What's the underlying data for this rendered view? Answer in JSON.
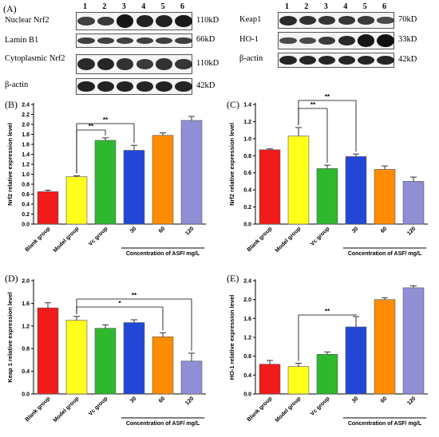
{
  "blots": {
    "panel_label": "(A)",
    "lanes": [
      "1",
      "2",
      "3",
      "4",
      "5",
      "6"
    ],
    "left": [
      {
        "label": "Nuclear Nrf2",
        "kd": "110kD",
        "intensity": [
          0.55,
          0.6,
          0.95,
          0.85,
          0.85,
          0.9
        ]
      },
      {
        "label": "Lamin B1",
        "kd": "66kD",
        "intensity": [
          0.55,
          0.55,
          0.55,
          0.55,
          0.55,
          0.55
        ]
      },
      {
        "label": "Cytoplasmic Nrf2",
        "kd": "110kD",
        "intensity": [
          0.75,
          0.8,
          0.7,
          0.6,
          0.7,
          0.65
        ]
      },
      {
        "label": "β-actin",
        "kd": "42kD",
        "intensity": [
          0.85,
          0.85,
          0.8,
          0.8,
          0.85,
          0.8
        ]
      }
    ],
    "right": [
      {
        "label": "Keap1",
        "kd": "70kD",
        "intensity": [
          0.75,
          0.7,
          0.65,
          0.65,
          0.6,
          0.45
        ]
      },
      {
        "label": "HO-1",
        "kd": "33kD",
        "intensity": [
          0.45,
          0.45,
          0.6,
          0.75,
          0.95,
          1.0
        ]
      },
      {
        "label": "β-actin",
        "kd": "42kD",
        "intensity": [
          0.8,
          0.8,
          0.8,
          0.8,
          0.8,
          0.8
        ]
      }
    ]
  },
  "chart_data": [
    {
      "panel": "(B)",
      "type": "bar",
      "categories": [
        "Blank group",
        "Model group",
        "Vc group",
        "30",
        "60",
        "120"
      ],
      "values": [
        0.65,
        0.95,
        1.68,
        1.48,
        1.78,
        2.08
      ],
      "errors": [
        0.03,
        0.02,
        0.05,
        0.1,
        0.05,
        0.08
      ],
      "ylabel": "Nrf2 relative expression level",
      "xgroup_label": "Concentration of ASF/ mg/L",
      "ylim": [
        0,
        2.4
      ],
      "yticks": [
        "0.0",
        "0.2",
        "0.4",
        "0.6",
        "0.8",
        "1.0",
        "1.2",
        "1.4",
        "1.6",
        "1.8",
        "2.0",
        "2.2",
        "2.4"
      ],
      "significance": [
        {
          "from": 1,
          "to": 2,
          "label": "**"
        },
        {
          "from": 1,
          "to": 3,
          "label": "**"
        }
      ]
    },
    {
      "panel": "(C)",
      "type": "bar",
      "categories": [
        "Blank group",
        "Model group",
        "Vc group",
        "30",
        "60",
        "120"
      ],
      "values": [
        0.87,
        1.03,
        0.65,
        0.79,
        0.64,
        0.5
      ],
      "errors": [
        0.01,
        0.1,
        0.04,
        0.03,
        0.04,
        0.05
      ],
      "ylabel": "Nrf2 relative expression level",
      "xgroup_label": "Concentration of ASF/ mg/L",
      "ylim": [
        0,
        1.4
      ],
      "yticks": [
        "0.0",
        "0.2",
        "0.4",
        "0.6",
        "0.8",
        "1.0",
        "1.2",
        "1.4"
      ],
      "significance": [
        {
          "from": 1,
          "to": 2,
          "label": "**"
        },
        {
          "from": 1,
          "to": 3,
          "label": "**"
        }
      ]
    },
    {
      "panel": "(D)",
      "type": "bar",
      "categories": [
        "Blank group",
        "Model group",
        "Vc group",
        "30",
        "60",
        "120"
      ],
      "values": [
        1.52,
        1.3,
        1.16,
        1.26,
        1.01,
        0.58
      ],
      "errors": [
        0.09,
        0.07,
        0.06,
        0.05,
        0.07,
        0.14
      ],
      "ylabel": "Keap 1 relative expression level",
      "xgroup_label": "Concentration of ASF/ mg/L",
      "ylim": [
        0,
        2.0
      ],
      "yticks": [
        "0.0",
        "0.4",
        "0.8",
        "1.2",
        "1.6",
        "2.0"
      ],
      "significance": [
        {
          "from": 1,
          "to": 4,
          "label": "*"
        },
        {
          "from": 1,
          "to": 5,
          "label": "**"
        }
      ]
    },
    {
      "panel": "(E)",
      "type": "bar",
      "categories": [
        "Blank group",
        "Model group",
        "Vc group",
        "30",
        "60",
        "120"
      ],
      "values": [
        0.63,
        0.58,
        0.84,
        1.42,
        2.0,
        2.25
      ],
      "errors": [
        0.08,
        0.07,
        0.05,
        0.22,
        0.04,
        0.04
      ],
      "ylabel": "HO-1 relative expression level",
      "xgroup_label": "Concentration of ASF/ mg/L",
      "ylim": [
        0,
        2.4
      ],
      "yticks": [
        "0.0",
        "0.4",
        "0.8",
        "1.2",
        "1.6",
        "2.0",
        "2.4"
      ],
      "significance": [
        {
          "from": 1,
          "to": 3,
          "label": "**"
        }
      ]
    }
  ],
  "colors": {
    "bars": [
      "#f21b1b",
      "#ffff1a",
      "#2eb82e",
      "#2247d6",
      "#ff8c00",
      "#8f8fd6"
    ],
    "bar_stroke": "#555555",
    "axis": "#000000"
  }
}
